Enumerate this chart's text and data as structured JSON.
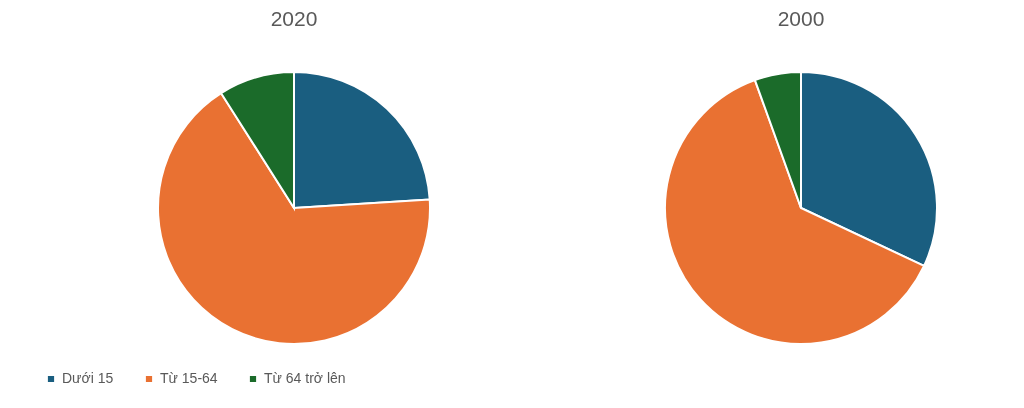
{
  "chart_data": [
    {
      "type": "pie",
      "title": "2020",
      "categories": [
        "Dưới 15",
        "Từ 15-64",
        "Từ 64 trở lên"
      ],
      "values": [
        24,
        67,
        9
      ],
      "colors": [
        "#1a5e80",
        "#e97132",
        "#1b6b2a"
      ],
      "legend": "bottom"
    },
    {
      "type": "pie",
      "title": "2000",
      "categories": [
        null,
        null,
        null
      ],
      "values": [
        32,
        62.5,
        5.5
      ],
      "colors": [
        "#1a5e80",
        "#e97132",
        "#1b6b2a"
      ]
    }
  ]
}
